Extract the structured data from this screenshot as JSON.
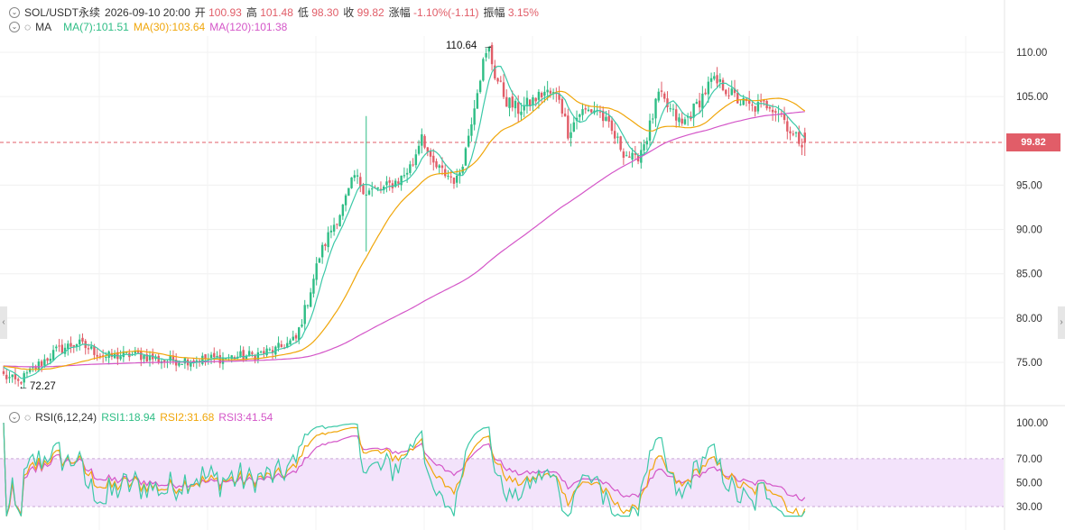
{
  "header": {
    "symbol": "SOL/USDT永续",
    "datetime": "2026-09-10 20:00",
    "open_label": "开",
    "open": "100.93",
    "high_label": "高",
    "high": "101.48",
    "low_label": "低",
    "low": "98.30",
    "close_label": "收",
    "close": "99.82",
    "change_label": "涨幅",
    "change": "-1.10%(-1.11)",
    "amplitude_label": "振幅",
    "amplitude": "3.15%"
  },
  "ma_legend": {
    "label": "MA",
    "ma7": "MA(7):101.51",
    "ma30": "MA(30):103.64",
    "ma120": "MA(120):101.38"
  },
  "rsi_legend": {
    "label": "RSI(6,12,24)",
    "rsi1": "RSI1:18.94",
    "rsi2": "RSI2:31.68",
    "rsi3": "RSI3:41.54"
  },
  "annotations": {
    "high_mark": "110.64",
    "low_mark": "72.27"
  },
  "current_price": "99.82",
  "colors": {
    "up": "#2ebd85",
    "down": "#e15d68",
    "ma7": "#3cc9a8",
    "ma30": "#f0a60a",
    "ma120": "#d456c8",
    "rsi_band": "#f3e3fb"
  },
  "chart_data": {
    "type": "candlestick",
    "price_axis": {
      "ticks": [
        110.0,
        105.0,
        95.0,
        90.0,
        85.0,
        80.0,
        75.0
      ],
      "tick_labels": [
        "110.00",
        "105.00",
        "95.00",
        "90.00",
        "85.00",
        "80.00",
        "75.00"
      ],
      "range": [
        71.5,
        114.5
      ]
    },
    "rsi_axis": {
      "ticks": [
        100,
        70,
        50,
        30
      ],
      "tick_labels": [
        "100.00",
        "70.00",
        "50.00",
        "30.00"
      ],
      "range": [
        22,
        102
      ],
      "band": [
        30,
        70
      ]
    },
    "waypoints": [
      [
        0,
        73.5
      ],
      [
        5,
        72.7
      ],
      [
        10,
        74.2
      ],
      [
        18,
        76.3
      ],
      [
        25,
        77.2
      ],
      [
        35,
        75.6
      ],
      [
        45,
        75.9
      ],
      [
        55,
        75.2
      ],
      [
        65,
        75.3
      ],
      [
        75,
        75.5
      ],
      [
        85,
        75.8
      ],
      [
        93,
        76.4
      ],
      [
        100,
        77.6
      ],
      [
        104,
        82
      ],
      [
        108,
        87
      ],
      [
        112,
        90
      ],
      [
        116,
        92.5
      ],
      [
        120,
        96
      ],
      [
        124,
        94.3
      ],
      [
        130,
        94.6
      ],
      [
        136,
        95.8
      ],
      [
        140,
        97.5
      ],
      [
        143,
        101
      ],
      [
        146,
        97.5
      ],
      [
        150,
        96.5
      ],
      [
        155,
        95.5
      ],
      [
        158,
        99
      ],
      [
        162,
        106
      ],
      [
        164,
        108.8
      ],
      [
        166,
        110.3
      ],
      [
        168,
        107.5
      ],
      [
        172,
        104.5
      ],
      [
        176,
        103.5
      ],
      [
        180,
        104.3
      ],
      [
        185,
        105.5
      ],
      [
        190,
        105
      ],
      [
        193,
        101
      ],
      [
        197,
        103.2
      ],
      [
        203,
        103.6
      ],
      [
        207,
        101.5
      ],
      [
        212,
        98.8
      ],
      [
        216,
        97.7
      ],
      [
        220,
        100.5
      ],
      [
        224,
        105.2
      ],
      [
        228,
        103.4
      ],
      [
        232,
        101.8
      ],
      [
        237,
        104
      ],
      [
        242,
        106.7
      ],
      [
        246,
        106.2
      ],
      [
        251,
        104.6
      ],
      [
        256,
        103.7
      ],
      [
        262,
        104.2
      ],
      [
        266,
        103
      ],
      [
        270,
        100.5
      ],
      [
        274,
        99.8
      ]
    ],
    "legend": [
      "MA(7)",
      "MA(30)",
      "MA(120)"
    ]
  }
}
